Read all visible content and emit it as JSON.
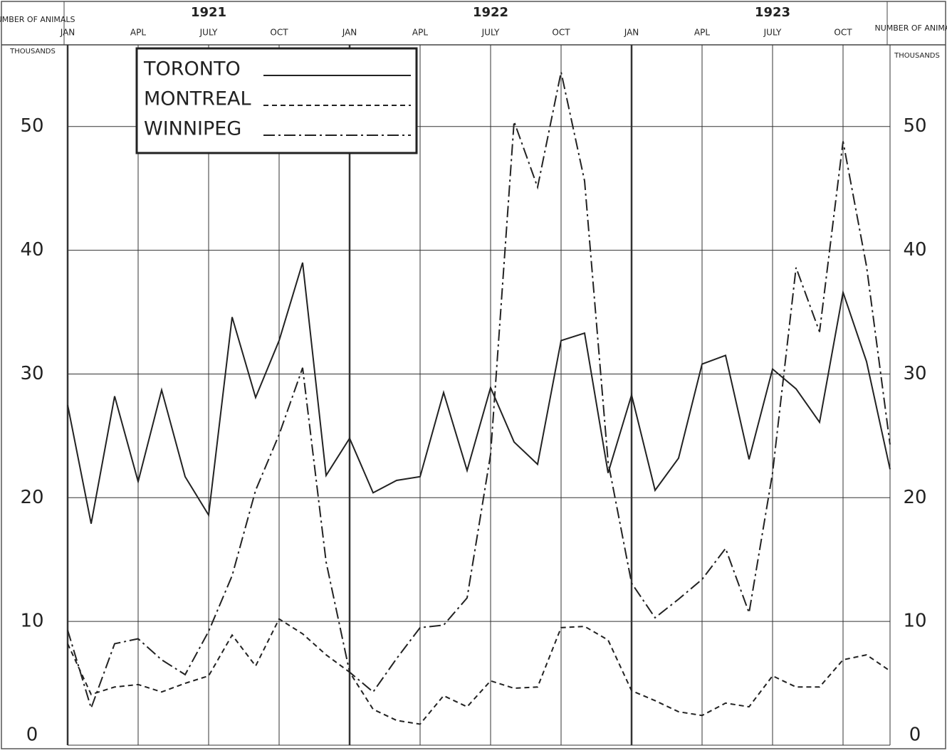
{
  "chart_data": {
    "type": "line",
    "y_label": "NUMBER OF ANIMALS",
    "y_unit": "THOUSANDS",
    "years": [
      "1921",
      "1922",
      "1923"
    ],
    "categories": [
      "JAN",
      null,
      null,
      "APL",
      null,
      null,
      "JULY",
      null,
      null,
      "OCT",
      null,
      null,
      "JAN",
      null,
      null,
      "APL",
      null,
      null,
      "JULY",
      null,
      null,
      "OCT",
      null,
      null,
      "JAN",
      null,
      null,
      "APL",
      null,
      null,
      "JULY",
      null,
      null,
      "OCT",
      null,
      null
    ],
    "series": [
      {
        "name": "TORONTO",
        "color": "#222",
        "style": "solid",
        "values": [
          27.5,
          17.9,
          28.2,
          21.3,
          28.7,
          21.7,
          18.6,
          34.6,
          28.1,
          32.7,
          39.0,
          21.8,
          24.8,
          20.4,
          21.4,
          21.7,
          28.5,
          22.2,
          28.9,
          24.5,
          22.7,
          32.7,
          33.3,
          22.0,
          28.3,
          20.6,
          23.2,
          30.8,
          31.5,
          23.1,
          30.4,
          28.8,
          26.1,
          36.6,
          31.0,
          22.3
        ]
      },
      {
        "name": "MONTREAL",
        "color": "#222",
        "style": "dashed",
        "values": [
          8.2,
          4.1,
          4.7,
          4.9,
          4.3,
          5.0,
          5.6,
          8.9,
          6.4,
          10.2,
          9.0,
          7.3,
          5.9,
          2.9,
          2.0,
          1.7,
          4.0,
          3.1,
          5.2,
          4.6,
          4.7,
          9.5,
          9.6,
          8.5,
          4.4,
          3.6,
          2.7,
          2.4,
          3.4,
          3.1,
          5.6,
          4.7,
          4.7,
          6.9,
          7.3,
          6.0
        ]
      },
      {
        "name": "WINNIPEG",
        "color": "#222",
        "style": "dashdot",
        "values": [
          9.3,
          3.0,
          8.2,
          8.6,
          6.9,
          5.7,
          9.2,
          13.7,
          20.6,
          25.1,
          30.5,
          14.8,
          5.9,
          4.3,
          7.0,
          9.5,
          9.7,
          11.9,
          23.5,
          50.4,
          45.1,
          54.4,
          45.6,
          22.9,
          13.1,
          10.3,
          11.8,
          13.4,
          15.9,
          10.7,
          22.0,
          38.6,
          33.4,
          48.8,
          38.7,
          24.3
        ]
      }
    ],
    "ylim": [
      0,
      56.6
    ],
    "yticks": [
      0,
      10,
      20,
      30,
      40,
      50
    ],
    "grid": true,
    "legend": "top-left"
  }
}
